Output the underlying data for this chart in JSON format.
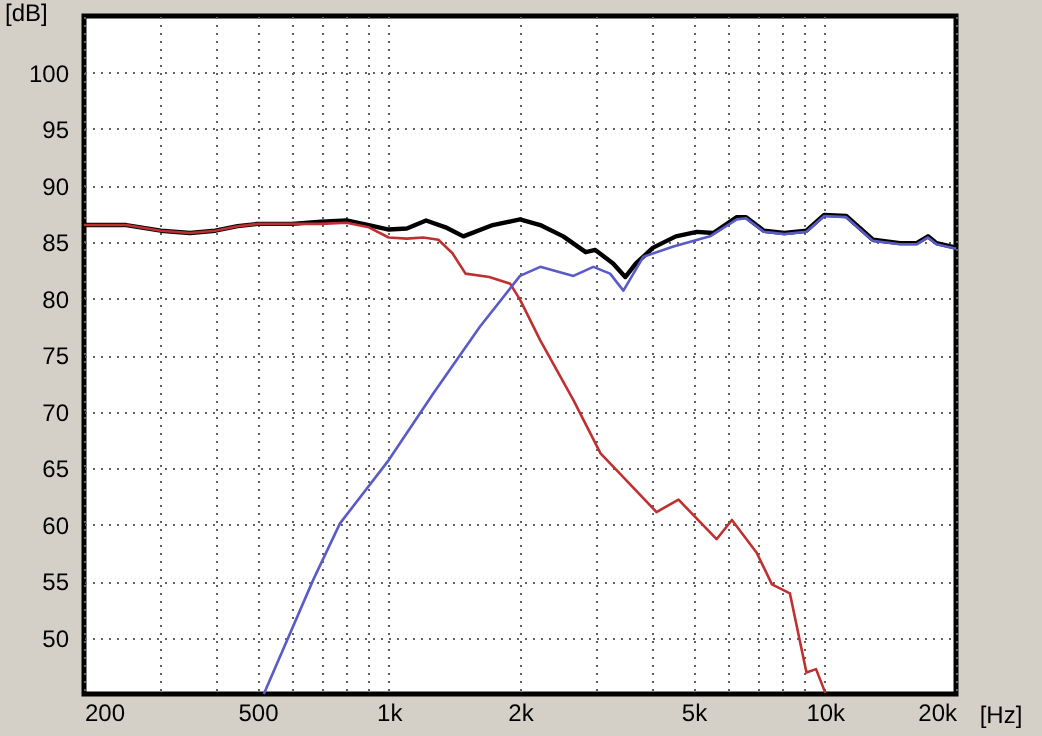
{
  "chart_data": {
    "type": "line",
    "xlabel": "[Hz]",
    "ylabel": "[dB]",
    "log": "x",
    "grid": true,
    "marker": "none",
    "line_style": "solid",
    "xlim": [
      200,
      20000
    ],
    "ylim": [
      45,
      105
    ],
    "xticks": [
      {
        "value": 200,
        "label": "200"
      },
      {
        "value": 300,
        "label": null
      },
      {
        "value": 400,
        "label": null
      },
      {
        "value": 500,
        "label": "500"
      },
      {
        "value": 600,
        "label": null
      },
      {
        "value": 700,
        "label": null
      },
      {
        "value": 800,
        "label": null
      },
      {
        "value": 900,
        "label": null
      },
      {
        "value": 1000,
        "label": "1k"
      },
      {
        "value": 2000,
        "label": "2k"
      },
      {
        "value": 3000,
        "label": null
      },
      {
        "value": 4000,
        "label": null
      },
      {
        "value": 5000,
        "label": "5k"
      },
      {
        "value": 6000,
        "label": null
      },
      {
        "value": 7000,
        "label": null
      },
      {
        "value": 8000,
        "label": null
      },
      {
        "value": 9000,
        "label": null
      },
      {
        "value": 10000,
        "label": "10k"
      },
      {
        "value": 20000,
        "label": "20k"
      }
    ],
    "yticks": [
      50,
      55,
      60,
      65,
      70,
      75,
      80,
      85,
      90,
      95,
      100
    ],
    "series": [
      {
        "color": "#000000",
        "x": [
          200,
          250,
          300,
          350,
          400,
          450,
          500,
          600,
          700,
          800,
          900,
          1000,
          1100,
          1218,
          1350,
          1483,
          1732,
          2000,
          2226,
          2513,
          2830,
          2976,
          3270,
          3487,
          3690,
          4040,
          4555,
          5090,
          5550,
          6285,
          6600,
          7250,
          8080,
          9080,
          9970,
          11200,
          12900,
          14880,
          16250,
          17250,
          18050,
          20000
        ],
        "values": [
          86.5,
          86.5,
          86,
          85.8,
          86,
          86.4,
          86.6,
          86.6,
          86.8,
          86.9,
          86.5,
          86.1,
          86.2,
          86.9,
          86.3,
          85.5,
          86.5,
          87,
          86.5,
          85.5,
          84.1,
          84.3,
          83.1,
          81.9,
          83.1,
          84.5,
          85.5,
          85.9,
          85.8,
          87.2,
          87.2,
          86,
          85.8,
          86,
          87.4,
          87.3,
          85.2,
          84.9,
          84.9,
          85.5,
          84.9,
          84.5
        ]
      },
      {
        "color": "#c03030",
        "x": [
          200,
          250,
          300,
          350,
          400,
          450,
          500,
          600,
          700,
          800,
          900,
          1000,
          1100,
          1200,
          1300,
          1400,
          1500,
          1700,
          1900,
          2000,
          2226,
          2652,
          3060,
          3390,
          4113,
          4620,
          5648,
          6125,
          6980,
          7567,
          8320,
          9080,
          9550,
          10030
        ],
        "values": [
          86.5,
          86.5,
          86,
          85.8,
          86,
          86.4,
          86.6,
          86.6,
          86.6,
          86.7,
          86.3,
          85.4,
          85.3,
          85.4,
          85.2,
          84,
          82.2,
          81.9,
          81.3,
          79.9,
          76.3,
          71,
          66.3,
          64.5,
          61.1,
          62.2,
          58.7,
          60.4,
          57.5,
          54.7,
          53.9,
          46.9,
          47.2,
          45.1
        ]
      },
      {
        "color": "#5a5ac8",
        "x": [
          517,
          671,
          773,
          1000,
          1265,
          1618,
          2000,
          2226,
          2652,
          2946,
          3218,
          3453,
          3838,
          4497,
          5455,
          6285,
          6600,
          7250,
          8080,
          9080,
          9970,
          11200,
          12900,
          14880,
          16250,
          17250,
          18050,
          20000
        ],
        "values": [
          45,
          55.1,
          60.1,
          65.7,
          71.6,
          77.5,
          82,
          82.8,
          82,
          82.8,
          82.2,
          80.7,
          83.7,
          84.6,
          85.5,
          87,
          87.1,
          85.9,
          85.7,
          85.9,
          87.3,
          87.2,
          85.1,
          84.8,
          84.8,
          85.4,
          84.8,
          84.4
        ]
      }
    ]
  }
}
